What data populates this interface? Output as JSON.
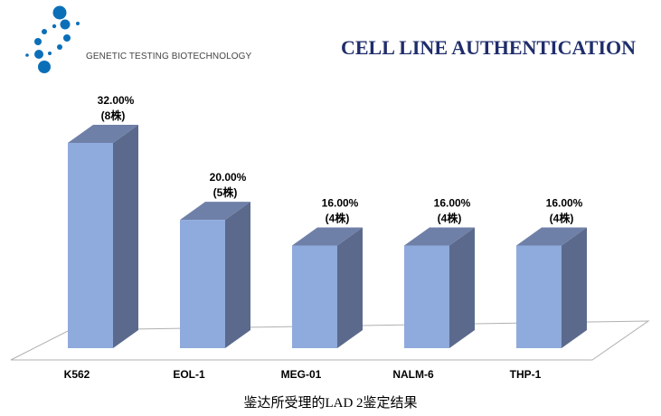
{
  "header": {
    "company": "GENETIC TESTING BIOTECHNOLOGY",
    "title": "CELL LINE AUTHENTICATION",
    "brand_color": "#0b6fb8",
    "title_color": "#1f2d6b"
  },
  "chart_data": {
    "type": "bar",
    "style": "3d-column",
    "categories": [
      "K562",
      "EOL-1",
      "MEG-01",
      "NALM-6",
      "THP-1"
    ],
    "values": [
      32,
      20,
      16,
      16,
      16
    ],
    "value_labels": [
      "32.00%",
      "20.00%",
      "16.00%",
      "16.00%",
      "16.00%"
    ],
    "count_labels": [
      "(8株)",
      "(5株)",
      "(4株)",
      "(4株)",
      "(4株)"
    ],
    "xlabel": "鉴达所受理的LAD 2鉴定结果",
    "ylabel": "",
    "ylim": [
      0,
      32
    ],
    "grid": false,
    "colors": {
      "front": "#8faadc",
      "side": "#5b6a8c",
      "top": "#6f80a8"
    }
  }
}
